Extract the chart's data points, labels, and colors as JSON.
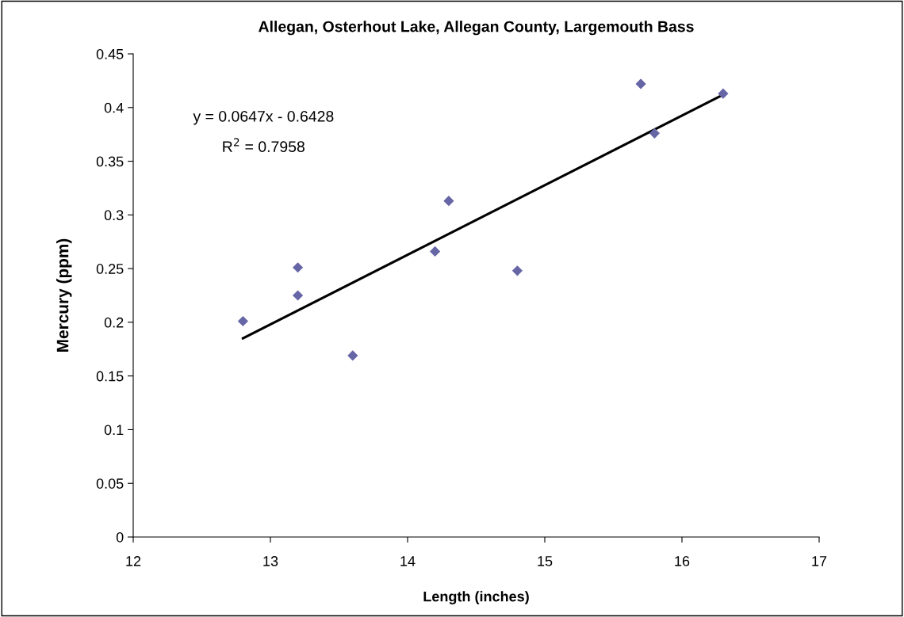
{
  "chart_data": {
    "type": "scatter",
    "title": "Allegan, Osterhout Lake, Allegan County, Largemouth Bass",
    "xlabel": "Length (inches)",
    "ylabel": "Mercury (ppm)",
    "series": [
      {
        "color": "#6666a6",
        "marker": "diamond",
        "x": [
          12.8,
          13.2,
          13.2,
          13.6,
          14.2,
          14.3,
          14.8,
          15.7,
          15.8,
          16.3
        ],
        "values": [
          0.201,
          0.251,
          0.225,
          0.169,
          0.266,
          0.313,
          0.248,
          0.422,
          0.376,
          0.413
        ]
      },
      {
        "type": "line",
        "color": "#000000",
        "marker": "none",
        "line_style": "solid",
        "x": [
          12.8,
          16.3
        ],
        "values": [
          0.185,
          0.412
        ]
      }
    ],
    "annotations": [
      "y = 0.0647x - 0.6428",
      "R$^{2}$ = 0.7958"
    ],
    "xlim": [
      12,
      17
    ],
    "xticks": [
      12,
      13,
      14,
      15,
      16,
      17
    ],
    "ylim": [
      0,
      0.45
    ],
    "yticks": [
      0,
      0.05,
      0.1,
      0.15,
      0.2,
      0.25,
      0.3,
      0.35,
      0.4,
      0.45
    ],
    "grid": false,
    "legend": false
  }
}
